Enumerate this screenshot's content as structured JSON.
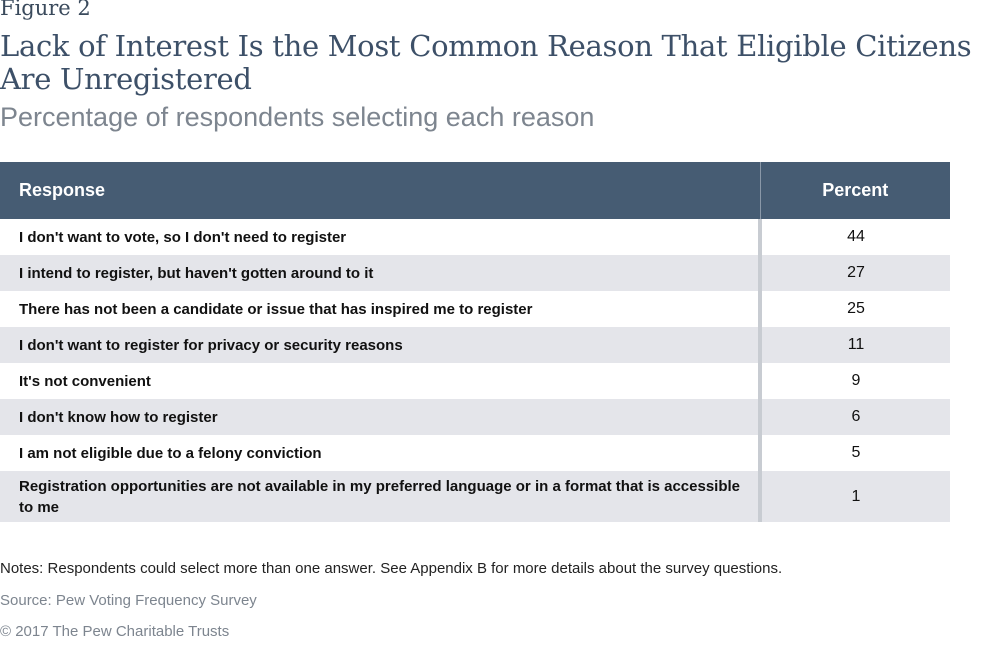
{
  "figure_label": "Figure 2",
  "title": "Lack of Interest Is the Most Common Reason That Eligible Citizens Are Unregistered",
  "subtitle": "Percentage of respondents selecting each reason",
  "chart_data": {
    "type": "table",
    "title": "Lack of Interest Is the Most Common Reason That Eligible Citizens Are Unregistered",
    "subtitle": "Percentage of respondents selecting each reason",
    "columns": [
      "Response",
      "Percent"
    ],
    "rows": [
      {
        "response": "I don't want to vote, so I don't need to register",
        "percent": 44
      },
      {
        "response": "I intend to register, but haven't gotten around to it",
        "percent": 27
      },
      {
        "response": "There has not been a candidate or issue that has inspired me to register",
        "percent": 25
      },
      {
        "response": "I don't want to register for privacy or security reasons",
        "percent": 11
      },
      {
        "response": "It's not convenient",
        "percent": 9
      },
      {
        "response": "I don't know how to register",
        "percent": 6
      },
      {
        "response": "I am not eligible due to a felony conviction",
        "percent": 5
      },
      {
        "response": "Registration opportunities are not available in my preferred language or in a format that is accessible to me",
        "percent": 1
      }
    ],
    "header_color": "#465c73",
    "stripe_color": "#e4e5ea"
  },
  "notes": "Notes: Respondents could select more than one answer. See Appendix B for more details about the survey questions.",
  "source": "Source: Pew Voting Frequency Survey",
  "copyright": "© 2017 The Pew Charitable Trusts"
}
